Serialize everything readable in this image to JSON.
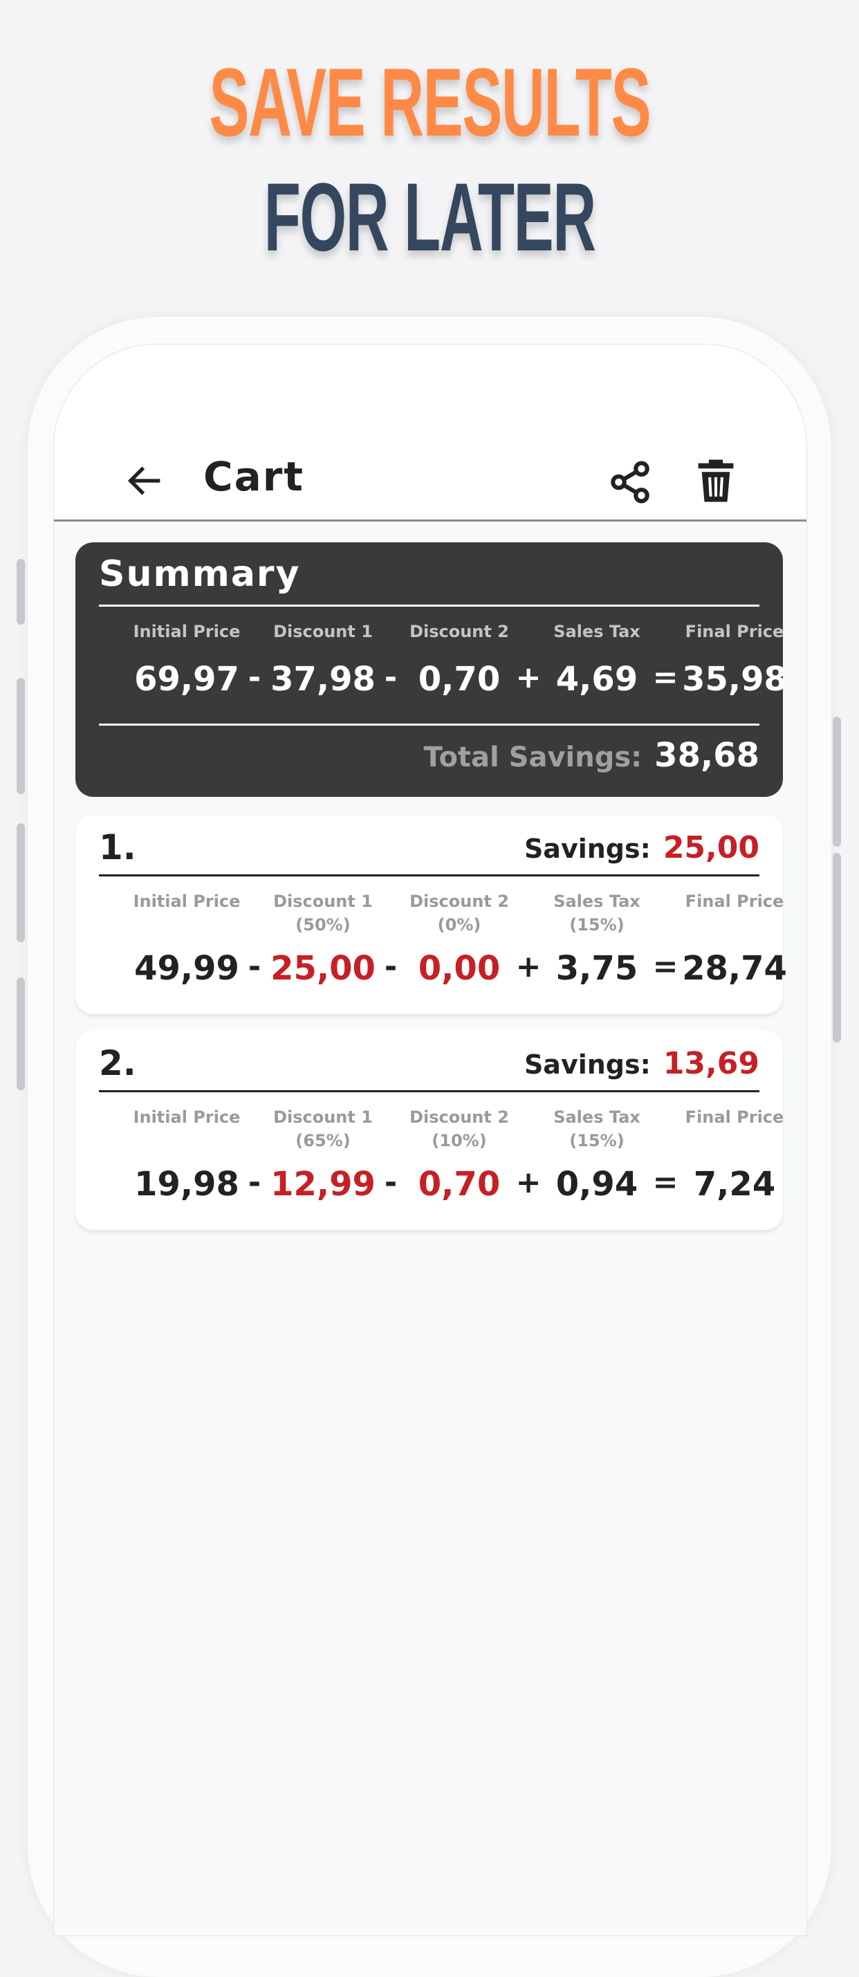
{
  "promo": {
    "line1": "SAVE RESULTS",
    "line2": "FOR LATER"
  },
  "colors": {
    "accent": "#ff8a45",
    "navy": "#34475e",
    "summary_bg": "#3a3a3c",
    "savings_red": "#c62026"
  },
  "appbar": {
    "title": "Cart",
    "icons": [
      "arrow-left-icon",
      "share-icon",
      "trash-icon"
    ]
  },
  "columns": [
    "Initial Price",
    "Discount 1",
    "Discount 2",
    "Sales Tax",
    "Final Price"
  ],
  "summary": {
    "title": "Summary",
    "values": [
      "69,97",
      "37,98",
      "0,70",
      "4,69",
      "35,98"
    ],
    "operators": [
      "-",
      "-",
      "+",
      "="
    ],
    "total_savings_label": "Total Savings:",
    "total_savings": "38,68"
  },
  "items": [
    {
      "index": "1.",
      "savings_label": "Savings:",
      "savings": "25,00",
      "percents": [
        "",
        "(50%)",
        "(0%)",
        "(15%)",
        ""
      ],
      "values": [
        "49,99",
        "25,00",
        "0,00",
        "3,75",
        "28,74"
      ],
      "operators": [
        "-",
        "-",
        "+",
        "="
      ]
    },
    {
      "index": "2.",
      "savings_label": "Savings:",
      "savings": "13,69",
      "percents": [
        "",
        "(65%)",
        "(10%)",
        "(15%)",
        ""
      ],
      "values": [
        "19,98",
        "12,99",
        "0,70",
        "0,94",
        "7,24"
      ],
      "operators": [
        "-",
        "-",
        "+",
        "="
      ]
    }
  ]
}
